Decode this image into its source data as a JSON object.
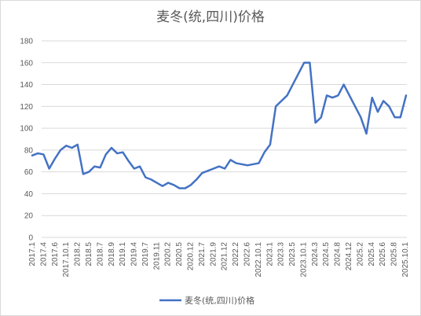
{
  "chart_data": {
    "type": "line",
    "title": "麦冬(统,四川)价格",
    "xlabel": "",
    "ylabel": "",
    "ylim": [
      0,
      180
    ],
    "yticks": [
      0,
      20,
      40,
      60,
      80,
      100,
      120,
      140,
      160,
      180
    ],
    "grid": true,
    "legend_position": "bottom",
    "colors": {
      "series": "#4472c4",
      "grid": "#d9d9d9",
      "text": "#595959"
    },
    "x_labels": [
      "2017.1",
      "2017.4",
      "2017.6",
      "2017.10.1",
      "2018.2",
      "2018.5",
      "2018.7",
      "2018.9",
      "2019.1",
      "2019.4",
      "2019.7",
      "2019.11",
      "2020.2",
      "2020.5",
      "2020.12",
      "2021.7",
      "2021.9",
      "2021.12",
      "2022.2",
      "2022.6",
      "2022.10.1",
      "2023.1",
      "2023.3",
      "2023.5",
      "2023.10.1",
      "2024.3",
      "2024.5",
      "2024.8",
      "2024.12",
      "2025.2",
      "2025.4",
      "2025.6",
      "2025.8",
      "2025.10.1"
    ],
    "series": [
      {
        "name": "麦冬(统,四川)价格",
        "values": [
          75,
          77,
          76,
          63,
          72,
          80,
          84,
          82,
          85,
          58,
          60,
          65,
          64,
          76,
          82,
          77,
          78,
          70,
          63,
          65,
          55,
          53,
          50,
          47,
          50,
          48,
          45,
          45,
          48,
          53,
          59,
          61,
          63,
          65,
          63,
          71,
          68,
          67,
          66,
          67,
          68,
          78,
          85,
          120,
          125,
          130,
          140,
          150,
          160,
          160,
          105,
          110,
          130,
          128,
          130,
          140,
          130,
          120,
          110,
          95,
          128,
          115,
          125,
          120,
          110,
          110,
          130
        ]
      }
    ]
  }
}
